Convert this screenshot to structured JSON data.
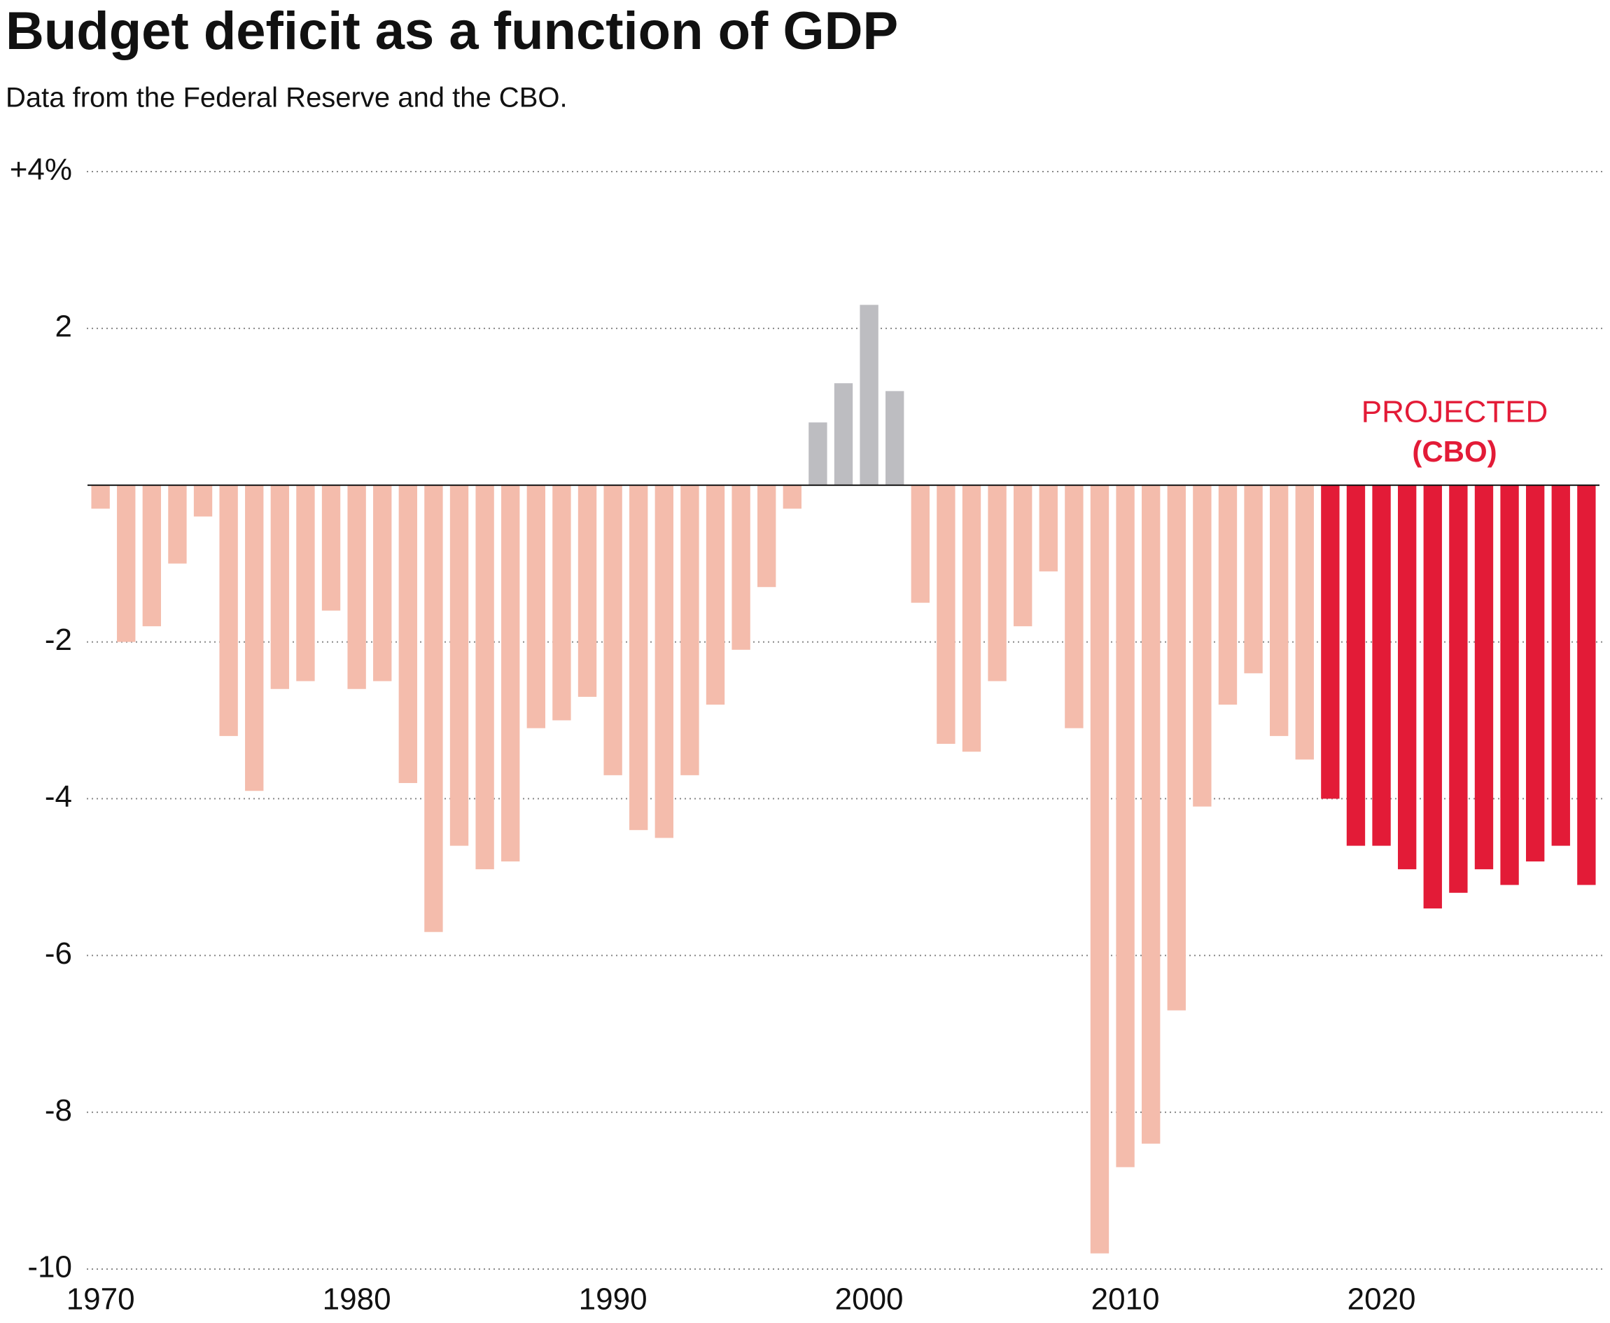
{
  "chart_data": {
    "type": "bar",
    "title": "Budget deficit as a function of GDP",
    "subtitle": "Data from the Federal Reserve and the CBO.",
    "annotations": [
      "PROJECTED",
      "(CBO)"
    ],
    "x": [
      1970,
      1971,
      1972,
      1973,
      1974,
      1975,
      1976,
      1977,
      1978,
      1979,
      1980,
      1981,
      1982,
      1983,
      1984,
      1985,
      1986,
      1987,
      1988,
      1989,
      1990,
      1991,
      1992,
      1993,
      1994,
      1995,
      1996,
      1997,
      1998,
      1999,
      2000,
      2001,
      2002,
      2003,
      2004,
      2005,
      2006,
      2007,
      2008,
      2009,
      2010,
      2011,
      2012,
      2013,
      2014,
      2015,
      2016,
      2017,
      2018,
      2019,
      2020,
      2021,
      2022,
      2023,
      2024,
      2025,
      2026,
      2027,
      2028
    ],
    "values": [
      -0.3,
      -2.0,
      -1.8,
      -1.0,
      -0.4,
      -3.2,
      -3.9,
      -2.6,
      -2.5,
      -1.6,
      -2.6,
      -2.5,
      -3.8,
      -5.7,
      -4.6,
      -4.9,
      -4.8,
      -3.1,
      -3.0,
      -2.7,
      -3.7,
      -4.4,
      -4.5,
      -3.7,
      -2.8,
      -2.1,
      -1.3,
      -0.3,
      0.8,
      1.3,
      2.3,
      1.2,
      -1.5,
      -3.3,
      -3.4,
      -2.5,
      -1.8,
      -1.1,
      -3.1,
      -9.8,
      -8.7,
      -8.4,
      -6.7,
      -4.1,
      -2.8,
      -2.4,
      -3.2,
      -3.5,
      -4.0,
      -4.6,
      -4.6,
      -4.9,
      -5.4,
      -5.2,
      -4.9,
      -5.1,
      -4.8,
      -4.6,
      -5.1
    ],
    "colors": [
      "#f4bcac",
      "#f4bcac",
      "#f4bcac",
      "#f4bcac",
      "#f4bcac",
      "#f4bcac",
      "#f4bcac",
      "#f4bcac",
      "#f4bcac",
      "#f4bcac",
      "#f4bcac",
      "#f4bcac",
      "#f4bcac",
      "#f4bcac",
      "#f4bcac",
      "#f4bcac",
      "#f4bcac",
      "#f4bcac",
      "#f4bcac",
      "#f4bcac",
      "#f4bcac",
      "#f4bcac",
      "#f4bcac",
      "#f4bcac",
      "#f4bcac",
      "#f4bcac",
      "#f4bcac",
      "#f4bcac",
      "#bdbdc1",
      "#bdbdc1",
      "#bdbdc1",
      "#bdbdc1",
      "#f4bcac",
      "#f4bcac",
      "#f4bcac",
      "#f4bcac",
      "#f4bcac",
      "#f4bcac",
      "#f4bcac",
      "#f4bcac",
      "#f4bcac",
      "#f4bcac",
      "#f4bcac",
      "#f4bcac",
      "#f4bcac",
      "#f4bcac",
      "#f4bcac",
      "#f4bcac",
      "#e31b37",
      "#e31b37",
      "#e31b37",
      "#e31b37",
      "#e31b37",
      "#e31b37",
      "#e31b37",
      "#e31b37",
      "#e31b37",
      "#e31b37",
      "#e31b37"
    ],
    "annotation_color": "#e31b37",
    "xlim": [
      1969.6,
      2028.4
    ],
    "xticks": [
      1970,
      1980,
      1990,
      2000,
      2010,
      2020
    ],
    "ylim": [
      -10,
      4
    ],
    "yticks": [
      {
        "value": 4,
        "label": "+4%"
      },
      2,
      -2,
      -4,
      -6,
      -8,
      -10
    ],
    "grid": true
  }
}
